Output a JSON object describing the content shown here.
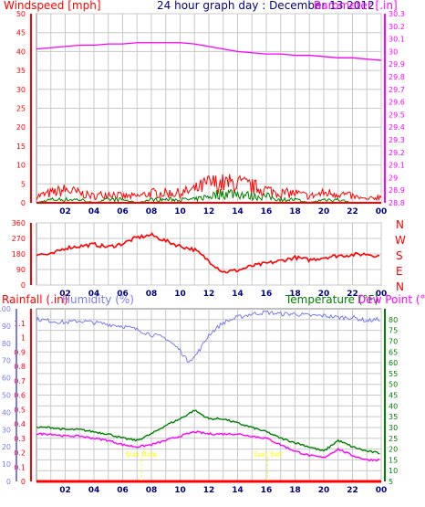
{
  "header": {
    "wind_label": "Windspeed [mph]",
    "title": "24 hour graph day : December 13 2012",
    "baro_label": "Barometer [.in]",
    "rain_label": "Rainfall (.in)",
    "hum_label": "Humidity (%)",
    "temp_label": "Temperature (°F)",
    "dew_label": "Dew Point (°F)"
  },
  "directions": [
    "N",
    "W",
    "S",
    "E",
    "N"
  ],
  "markers": [
    "Sun Rise",
    "Sun Set"
  ],
  "colors": {
    "wind": "#ff0000",
    "gust": "#ff0000",
    "wind_avg": "#008000",
    "baro": "#ff00ff",
    "winddir": "#ff0000",
    "humidity": "#7b7bf0",
    "temperature": "#008000",
    "dewpoint": "#ff00ff",
    "rain": "#ff0000",
    "time_axis": "#000080",
    "grid": "#c8c8c8"
  },
  "chart_data": [
    {
      "type": "line",
      "title": "24 hour graph day : December 13 2012",
      "x_ticks": [
        "02",
        "04",
        "06",
        "08",
        "10",
        "12",
        "14",
        "16",
        "18",
        "20",
        "22",
        "00"
      ],
      "left_axis": {
        "label": "Windspeed [mph]",
        "range": [
          0,
          50
        ],
        "ticks": [
          0,
          5,
          10,
          15,
          20,
          25,
          30,
          35,
          40,
          45,
          50
        ]
      },
      "right_axis": {
        "label": "Barometer [.in]",
        "range": [
          28.8,
          30.3
        ],
        "ticks": [
          28.8,
          28.9,
          29,
          29.1,
          29.2,
          29.3,
          29.4,
          29.5,
          29.6,
          29.7,
          29.8,
          29.9,
          30,
          30.1,
          30.2,
          30.3
        ]
      },
      "series": [
        {
          "name": "Barometer [.in]",
          "axis": "right",
          "x": [
            0,
            1,
            2,
            3,
            4,
            5,
            6,
            7,
            8,
            9,
            10,
            11,
            12,
            13,
            14,
            15,
            16,
            17,
            18,
            19,
            20,
            21,
            22,
            23,
            24
          ],
          "values": [
            30.02,
            30.03,
            30.04,
            30.05,
            30.05,
            30.06,
            30.06,
            30.07,
            30.07,
            30.07,
            30.07,
            30.06,
            30.04,
            30.02,
            30.0,
            29.99,
            29.98,
            29.98,
            29.97,
            29.97,
            29.96,
            29.95,
            29.95,
            29.94,
            29.93
          ]
        },
        {
          "name": "Windspeed gust",
          "axis": "left",
          "x": [
            0,
            1,
            2,
            3,
            4,
            5,
            6,
            7,
            8,
            9,
            10,
            11,
            12,
            13,
            14,
            15,
            16,
            17,
            18,
            19,
            20,
            21,
            22,
            23,
            24
          ],
          "values": [
            2,
            3,
            4,
            3,
            2,
            3,
            2,
            2,
            3,
            3,
            3,
            4,
            6,
            6,
            6,
            5,
            4,
            3,
            3,
            2,
            3,
            3,
            2,
            1,
            2
          ]
        },
        {
          "name": "Windspeed average",
          "axis": "left",
          "x": [
            0,
            1,
            2,
            3,
            4,
            5,
            6,
            7,
            8,
            9,
            10,
            11,
            12,
            13,
            14,
            15,
            16,
            17,
            18,
            19,
            20,
            21,
            22,
            23,
            24
          ],
          "values": [
            0,
            1,
            1,
            1,
            0,
            1,
            1,
            0,
            1,
            1,
            1,
            1,
            2,
            3,
            3,
            2,
            2,
            1,
            1,
            0,
            1,
            1,
            0,
            0,
            0
          ]
        }
      ]
    },
    {
      "type": "line",
      "title": "",
      "x_ticks": [
        "02",
        "04",
        "06",
        "08",
        "10",
        "12",
        "14",
        "16",
        "18",
        "20",
        "22",
        "00"
      ],
      "left_axis": {
        "label": "",
        "range": [
          0,
          360
        ],
        "ticks": [
          0,
          90,
          180,
          270,
          360
        ]
      },
      "series": [
        {
          "name": "Wind direction",
          "axis": "left",
          "x": [
            0,
            1,
            2,
            3,
            4,
            5,
            6,
            7,
            8,
            9,
            10,
            11,
            12,
            13,
            14,
            15,
            16,
            17,
            18,
            19,
            20,
            21,
            22,
            23,
            24
          ],
          "values": [
            180,
            175,
            215,
            225,
            235,
            220,
            240,
            275,
            290,
            255,
            225,
            205,
            140,
            75,
            85,
            110,
            125,
            140,
            160,
            145,
            160,
            170,
            175,
            180,
            165
          ]
        }
      ]
    },
    {
      "type": "line",
      "title": "",
      "x_ticks": [
        "02",
        "04",
        "06",
        "08",
        "10",
        "12",
        "14",
        "16",
        "18",
        "20",
        "22",
        "00"
      ],
      "rain_axis": {
        "label": "Rainfall (.in)",
        "range": [
          0,
          1.2
        ],
        "ticks": [
          0,
          0.1,
          0.2,
          0.3,
          0.4,
          0.5,
          0.6,
          0.7,
          0.8,
          0.9,
          1,
          1.1
        ]
      },
      "humidity_axis": {
        "label": "Humidity (%)",
        "range": [
          0,
          100
        ],
        "ticks": [
          0,
          10,
          20,
          30,
          40,
          50,
          60,
          70,
          80,
          90,
          100
        ]
      },
      "temp_axis": {
        "label": "Temperature (°F)",
        "range": [
          5,
          85
        ],
        "ticks": [
          5,
          10,
          15,
          20,
          25,
          30,
          35,
          40,
          45,
          50,
          55,
          60,
          65,
          70,
          75,
          80
        ]
      },
      "series": [
        {
          "name": "Humidity (%)",
          "axis": "humidity",
          "x": [
            0,
            1,
            2,
            3,
            4,
            5,
            6,
            7,
            8,
            9,
            10,
            10.5,
            11,
            11.5,
            12,
            13,
            14,
            15,
            16,
            17,
            18,
            19,
            20,
            21,
            22,
            23,
            24
          ],
          "values": [
            94,
            93,
            92,
            93,
            92,
            91,
            90,
            88,
            85,
            83,
            76,
            70,
            72,
            78,
            85,
            92,
            95,
            97,
            98,
            97,
            97,
            96,
            96,
            95,
            95,
            93,
            94
          ]
        },
        {
          "name": "Temperature (°F)",
          "axis": "temp",
          "x": [
            0,
            1,
            2,
            3,
            4,
            5,
            6,
            7,
            8,
            9,
            10,
            11,
            12,
            13,
            14,
            15,
            16,
            17,
            18,
            19,
            20,
            21,
            22,
            23,
            24
          ],
          "values": [
            30,
            30,
            29,
            29,
            28,
            27,
            25,
            24,
            27,
            31,
            34,
            38,
            34,
            34,
            32,
            30,
            28,
            25,
            23,
            21,
            19,
            24,
            21,
            19,
            18
          ]
        },
        {
          "name": "Dew Point (°F)",
          "axis": "temp",
          "x": [
            0,
            1,
            2,
            3,
            4,
            5,
            6,
            7,
            8,
            9,
            10,
            11,
            12,
            13,
            14,
            15,
            16,
            17,
            18,
            19,
            20,
            21,
            22,
            23,
            24
          ],
          "values": [
            27,
            27,
            26,
            26,
            25,
            24,
            22,
            21,
            22,
            24,
            26,
            28,
            27,
            27,
            27,
            26,
            25,
            22,
            19,
            17,
            16,
            20,
            17,
            15,
            15
          ]
        },
        {
          "name": "Rainfall (.in)",
          "axis": "rain",
          "x": [
            0,
            24
          ],
          "values": [
            0,
            0
          ]
        }
      ],
      "annotations": [
        {
          "text": "Sun Rise",
          "x": 7.3
        },
        {
          "text": "Sun Set",
          "x": 16.1
        }
      ]
    }
  ]
}
